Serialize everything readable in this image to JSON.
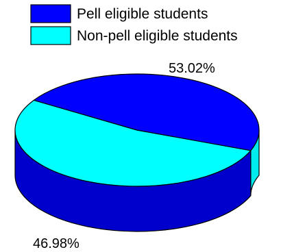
{
  "chart_data": {
    "type": "pie",
    "title": "",
    "slices": [
      {
        "name": "Pell eligible students",
        "value": 46.98,
        "label": "46.98%",
        "color": "#0000ff"
      },
      {
        "name": "Non-pell eligible students",
        "value": 53.02,
        "label": "53.02%",
        "color": "#00ffff"
      }
    ],
    "legend_position": "top",
    "style": "3d"
  }
}
